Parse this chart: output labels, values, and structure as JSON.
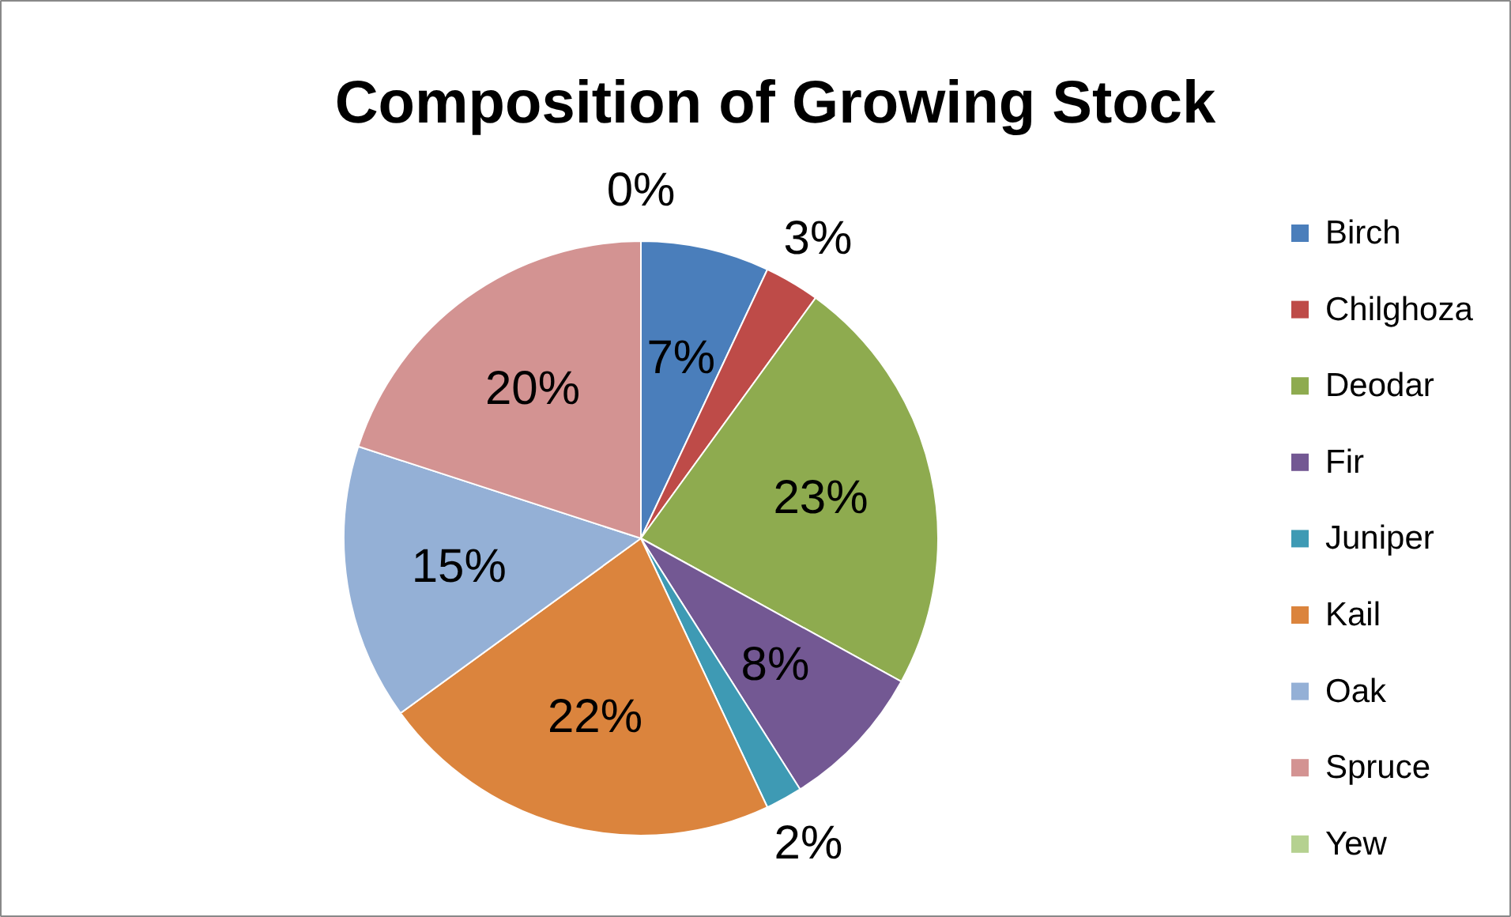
{
  "chart_data": {
    "type": "pie",
    "title": "Composition of Growing Stock",
    "categories": [
      "Birch",
      "Chilghoza",
      "Deodar",
      "Fir",
      "Juniper",
      "Kail",
      "Oak",
      "Spruce",
      "Yew"
    ],
    "values": [
      7,
      3,
      23,
      8,
      2,
      22,
      15,
      20,
      0
    ],
    "value_labels": [
      "7%",
      "3%",
      "23%",
      "8%",
      "2%",
      "22%",
      "15%",
      "20%",
      "0%"
    ],
    "colors": [
      "#4a7ebb",
      "#be4b48",
      "#8eab4f",
      "#735893",
      "#3e9ab4",
      "#db843d",
      "#94b0d6",
      "#d39392",
      "#b5d190"
    ],
    "legend": "right"
  }
}
